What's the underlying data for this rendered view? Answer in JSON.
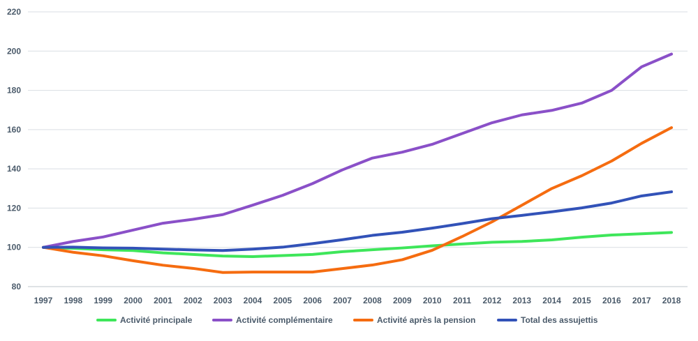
{
  "chart_data": {
    "type": "line",
    "title": "",
    "xlabel": "",
    "ylabel": "",
    "ylim": [
      80,
      220
    ],
    "yticks": [
      80,
      100,
      120,
      140,
      160,
      180,
      200,
      220
    ],
    "grid": true,
    "legend_position": "bottom",
    "categories": [
      "1997",
      "1998",
      "1999",
      "2000",
      "2001",
      "2002",
      "2003",
      "2004",
      "2005",
      "2006",
      "2007",
      "2008",
      "2009",
      "2010",
      "2011",
      "2012",
      "2013",
      "2014",
      "2015",
      "2016",
      "2017",
      "2018"
    ],
    "series": [
      {
        "name": "Activité principale",
        "color": "#3ee65a",
        "values": [
          100,
          99.5,
          98.8,
          98.4,
          97.2,
          96.4,
          95.6,
          95.3,
          95.8,
          96.4,
          97.8,
          98.8,
          99.7,
          100.8,
          101.7,
          102.6,
          103,
          103.8,
          105.2,
          106.3,
          106.9,
          107.6
        ]
      },
      {
        "name": "Activité complémentaire",
        "color": "#8a50c8",
        "values": [
          100,
          103,
          105.3,
          108.8,
          112.3,
          114.3,
          116.7,
          121.5,
          126.5,
          132.5,
          139.5,
          145.5,
          148.5,
          152.5,
          158,
          163.5,
          167.5,
          169.8,
          173.5,
          180,
          192,
          198.5
        ]
      },
      {
        "name": "Activité après la pension",
        "color": "#f56c10",
        "values": [
          100,
          97.5,
          95.7,
          93.2,
          90.9,
          89.3,
          87.2,
          87.4,
          87.4,
          87.4,
          89.2,
          91,
          93.7,
          98.5,
          105.5,
          113,
          121.5,
          130,
          136.5,
          144,
          153,
          161
        ]
      },
      {
        "name": "Total des assujettis",
        "color": "#3252b8",
        "values": [
          100,
          100.1,
          99.7,
          99.6,
          99.1,
          98.7,
          98.4,
          99.1,
          100.1,
          101.9,
          103.9,
          106.1,
          107.7,
          109.8,
          112.1,
          114.6,
          116.3,
          118.1,
          120.1,
          122.6,
          126.2,
          128.3
        ]
      }
    ]
  }
}
